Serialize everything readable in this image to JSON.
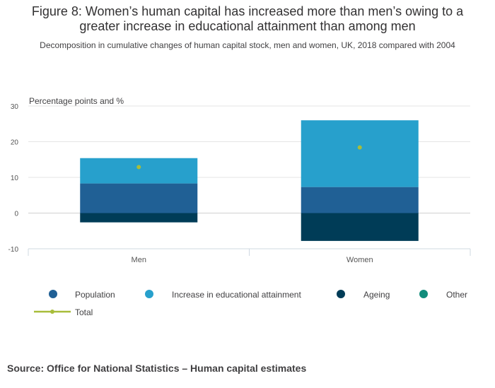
{
  "title": "Figure 8: Women’s human capital has increased more than men’s owing to a greater increase in educational attainment than among men",
  "subtitle": "Decomposition in cumulative changes of human capital stock, men and women, UK, 2018 compared with 2004",
  "source": "Source: Office for National Statistics – Human capital estimates",
  "chart_data": {
    "type": "bar",
    "stacked": true,
    "categories": [
      "Men",
      "Women"
    ],
    "ylabel": "Percentage points and %",
    "ylim": [
      -10,
      30
    ],
    "yticks": [
      -10,
      0,
      10,
      20,
      30
    ],
    "grid": true,
    "legend_position": "bottom",
    "series": [
      {
        "name": "Population",
        "type": "bar",
        "color": "#206095",
        "values": [
          8.3,
          7.3
        ]
      },
      {
        "name": "Increase in educational attainment",
        "type": "bar",
        "color": "#27a0cc",
        "values": [
          7.1,
          18.7
        ]
      },
      {
        "name": "Ageing",
        "type": "bar",
        "color": "#003c57",
        "values": [
          -2.6,
          -7.8
        ]
      },
      {
        "name": "Other",
        "type": "bar",
        "color": "#118c7b",
        "values": [
          0,
          0
        ]
      },
      {
        "name": "Total",
        "type": "point",
        "color": "#a8bd3a",
        "values": [
          12.9,
          18.4
        ]
      }
    ]
  }
}
